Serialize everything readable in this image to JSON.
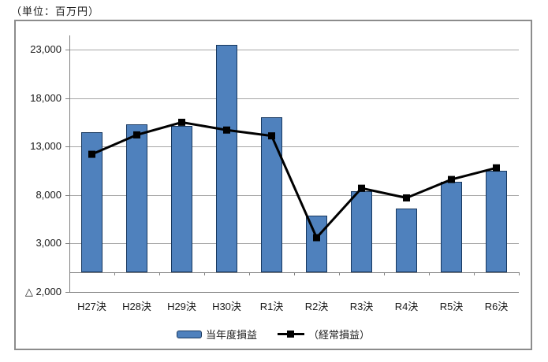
{
  "chart": {
    "unit_label": "（単位：百万円）",
    "legend": {
      "bar_label": "当年度損益",
      "line_label": "（経常損益）"
    },
    "colors": {
      "bar_fill": "#4F81BD",
      "bar_border": "#17375E",
      "line": "#000000",
      "gridline": "#A6A6A6",
      "axis": "#808080"
    }
  },
  "chart_data": {
    "type": "bar",
    "subtype": "bar-with-line-overlay",
    "title": "",
    "xlabel": "",
    "ylabel": "（単位：百万円）",
    "categories": [
      "H27決",
      "H28決",
      "H29決",
      "H30決",
      "R1決",
      "R2決",
      "R3決",
      "R4決",
      "R5決",
      "R6決"
    ],
    "series": [
      {
        "name": "当年度損益",
        "type": "bar",
        "color": "#4F81BD",
        "values": [
          14500,
          15300,
          15100,
          23500,
          16000,
          5900,
          8400,
          6600,
          9400,
          10500
        ]
      },
      {
        "name": "（経常損益）",
        "type": "line",
        "color": "#000000",
        "marker": "square",
        "values": [
          12200,
          14200,
          15500,
          14700,
          14100,
          3600,
          8700,
          7700,
          9600,
          10800
        ]
      }
    ],
    "ylim": [
      -2000,
      24460
    ],
    "bar_baseline": 0,
    "grid": "horizontal",
    "legend_position": "bottom",
    "gridline_values": [
      3000,
      8000,
      13000,
      18000,
      23000
    ],
    "yticks": [
      {
        "value": 23000,
        "label": "23,000"
      },
      {
        "value": 18000,
        "label": "18,000"
      },
      {
        "value": 13000,
        "label": "13,000"
      },
      {
        "value": 8000,
        "label": "8,000"
      },
      {
        "value": 3000,
        "label": "3,000"
      },
      {
        "value": -2000,
        "label": "△ 2,000"
      }
    ]
  }
}
